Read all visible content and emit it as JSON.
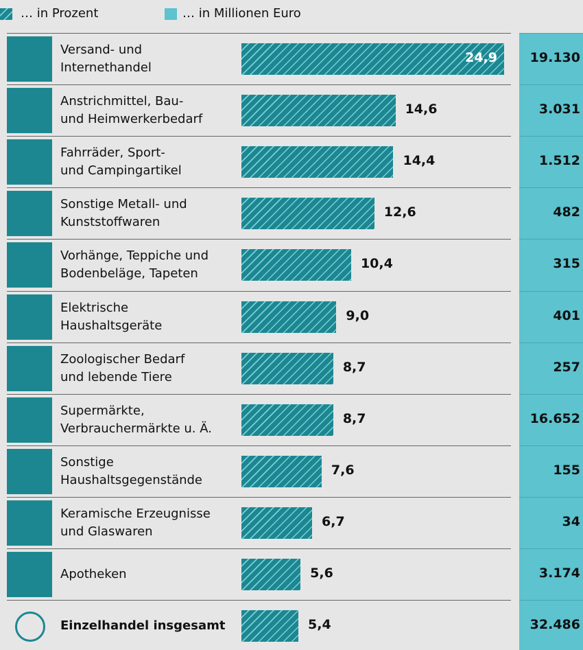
{
  "chart_data": {
    "type": "bar",
    "categories": [
      "Versand- und\nInternethandel",
      "Anstrichmittel, Bau-\nund Heimwerkerbedarf",
      "Fahrräder, Sport-\nund Campingartikel",
      "Sonstige Metall- und\nKunststoffwaren",
      "Vorhänge, Teppiche und\nBodenbeläge, Tapeten",
      "Elektrische\nHaushaltsgeräte",
      "Zoologischer Bedarf\nund lebende Tiere",
      "Supermärkte,\nVerbrauchermärkte u. Ä.",
      "Sonstige\nHaushaltsgegenstände",
      "Keramische Erzeugnisse\nund Glaswaren",
      "Apotheken",
      "Einzelhandel insgesamt"
    ],
    "series": [
      {
        "name": "… in Prozent",
        "color": "#1d8791",
        "values": [
          24.9,
          14.6,
          14.4,
          12.6,
          10.4,
          9.0,
          8.7,
          8.7,
          7.6,
          6.7,
          5.6,
          5.4
        ],
        "value_labels": [
          "24,9",
          "14,6",
          "14,4",
          "12,6",
          "10,4",
          "9,0",
          "8,7",
          "8,7",
          "7,6",
          "6,7",
          "5,6",
          "5,4"
        ]
      },
      {
        "name": "… in Millionen Euro",
        "color": "#5cc3cf",
        "values": [
          19130,
          3031,
          1512,
          482,
          315,
          401,
          257,
          16652,
          155,
          34,
          3174,
          32486
        ],
        "value_labels": [
          "19.130",
          "3.031",
          "1.512",
          "482",
          "315",
          "401",
          "257",
          "16.652",
          "155",
          "34",
          "3.174",
          "32.486"
        ]
      }
    ]
  }
}
